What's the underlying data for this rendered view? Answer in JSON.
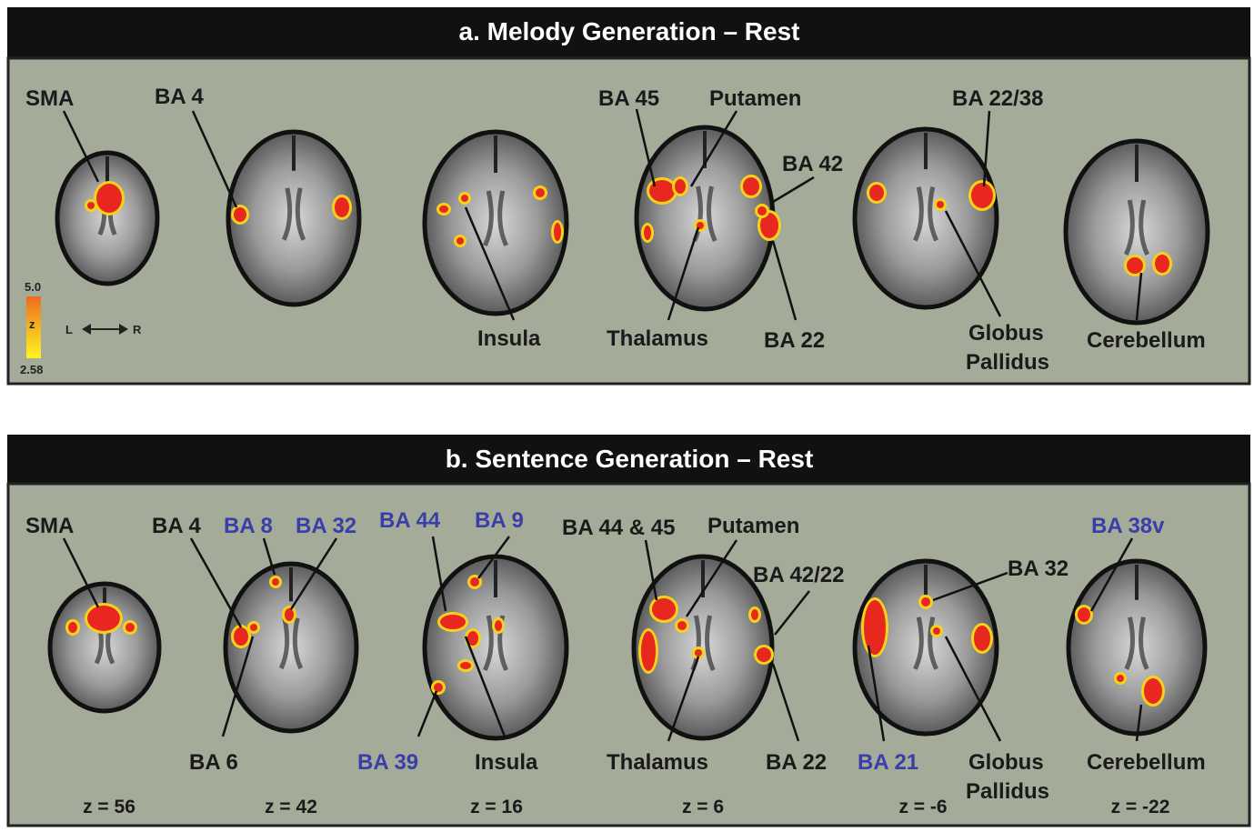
{
  "panels": [
    {
      "title": "a. Melody Generation  –  Rest",
      "labels": [
        {
          "text": "SMA",
          "highlight": false
        },
        {
          "text": "BA 4",
          "highlight": false
        },
        {
          "text": "BA 45",
          "highlight": false
        },
        {
          "text": "Putamen",
          "highlight": false
        },
        {
          "text": "BA 22/38",
          "highlight": false
        },
        {
          "text": "BA 42",
          "highlight": false
        },
        {
          "text": "Insula",
          "highlight": false
        },
        {
          "text": "Thalamus",
          "highlight": false
        },
        {
          "text": "BA 22",
          "highlight": false
        },
        {
          "text": "Globus",
          "highlight": false
        },
        {
          "text": "Pallidus",
          "highlight": false
        },
        {
          "text": "Cerebellum",
          "highlight": false
        }
      ],
      "slices": []
    },
    {
      "title": "b. Sentence Generation  –   Rest",
      "labels": [
        {
          "text": "SMA",
          "highlight": false
        },
        {
          "text": "BA 4",
          "highlight": false
        },
        {
          "text": "BA 8",
          "highlight": true
        },
        {
          "text": "BA 32",
          "highlight": true
        },
        {
          "text": "BA 44",
          "highlight": true
        },
        {
          "text": "BA 9",
          "highlight": true
        },
        {
          "text": "BA 44 & 45",
          "highlight": false
        },
        {
          "text": "Putamen",
          "highlight": false
        },
        {
          "text": "BA 42/22",
          "highlight": false
        },
        {
          "text": "BA 32",
          "highlight": false
        },
        {
          "text": "BA 38v",
          "highlight": true
        },
        {
          "text": "BA 6",
          "highlight": false
        },
        {
          "text": "BA 39",
          "highlight": true
        },
        {
          "text": "Insula",
          "highlight": false
        },
        {
          "text": "Thalamus",
          "highlight": false
        },
        {
          "text": "BA 22",
          "highlight": false
        },
        {
          "text": "BA 21",
          "highlight": true
        },
        {
          "text": "Globus",
          "highlight": false
        },
        {
          "text": "Pallidus",
          "highlight": false
        },
        {
          "text": "Cerebellum",
          "highlight": false
        }
      ],
      "slices": [
        "z = 56",
        "z = 42",
        "z = 16",
        "z = 6",
        "z = -6",
        "z = -22"
      ]
    }
  ],
  "scale": {
    "max": "5.0",
    "symbol": "z",
    "min": "2.58",
    "left": "L",
    "right": "R"
  }
}
